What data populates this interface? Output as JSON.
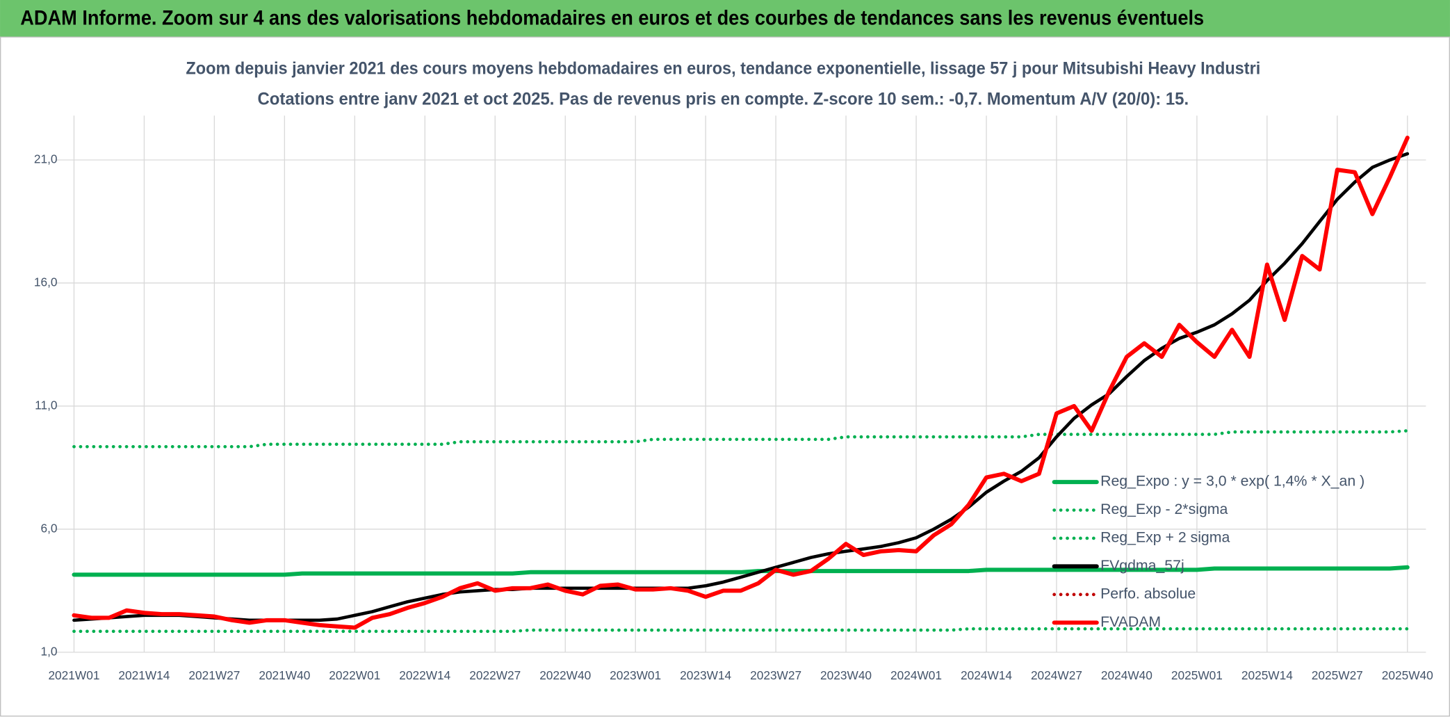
{
  "header": {
    "title": "ADAM Informe. Zoom sur 4 ans des valorisations hebdomadaires en euros et des courbes de tendances sans les revenus éventuels"
  },
  "chart_data": {
    "type": "line",
    "title": "Zoom depuis janvier 2021 des cours moyens hebdomadaires en euros, tendance exponentielle, lissage 57 j pour Mitsubishi Heavy Industri",
    "subtitle": "Cotations entre janv 2021 et oct 2025. Pas de revenus pris en compte. Z-score 10 sem.: -0,7. Momentum A/V (20/0): 15.",
    "categories": [
      "2021W01",
      null,
      null,
      null,
      "2021W14",
      null,
      null,
      null,
      "2021W27",
      null,
      null,
      null,
      "2021W40",
      null,
      null,
      null,
      "2022W01",
      null,
      null,
      null,
      "2022W14",
      null,
      null,
      null,
      "2022W27",
      null,
      null,
      null,
      "2022W40",
      null,
      null,
      null,
      "2023W01",
      null,
      null,
      null,
      "2023W14",
      null,
      null,
      null,
      "2023W27",
      null,
      null,
      null,
      "2023W40",
      null,
      null,
      null,
      "2024W01",
      null,
      null,
      null,
      "2024W14",
      null,
      null,
      null,
      "2024W27",
      null,
      null,
      null,
      "2024W40",
      null,
      null,
      null,
      "2025W01",
      null,
      null,
      null,
      "2025W14",
      null,
      null,
      null,
      "2025W27",
      null,
      null,
      null,
      "2025W40"
    ],
    "ylim": [
      1,
      22.8
    ],
    "yticks": [
      {
        "value": 1,
        "label": "1,0"
      },
      {
        "value": 6,
        "label": "6,0"
      },
      {
        "value": 11,
        "label": "11,0"
      },
      {
        "value": 16,
        "label": "16,0"
      },
      {
        "value": 21,
        "label": "21,0"
      }
    ],
    "grid": true,
    "legend": "lower right",
    "series": [
      {
        "name": "Reg_Expo : y = 3,0 * exp( 1,4% *  X_an )",
        "color": "#00b050",
        "style": "solid",
        "values": [
          4.15,
          4.15,
          4.15,
          4.15,
          4.15,
          4.15,
          4.15,
          4.15,
          4.15,
          4.15,
          4.15,
          4.15,
          4.15,
          4.2,
          4.2,
          4.2,
          4.2,
          4.2,
          4.2,
          4.2,
          4.2,
          4.2,
          4.2,
          4.2,
          4.2,
          4.2,
          4.25,
          4.25,
          4.25,
          4.25,
          4.25,
          4.25,
          4.25,
          4.25,
          4.25,
          4.25,
          4.25,
          4.25,
          4.25,
          4.3,
          4.3,
          4.3,
          4.3,
          4.3,
          4.3,
          4.3,
          4.3,
          4.3,
          4.3,
          4.3,
          4.3,
          4.3,
          4.35,
          4.35,
          4.35,
          4.35,
          4.35,
          4.35,
          4.35,
          4.35,
          4.35,
          4.35,
          4.35,
          4.35,
          4.35,
          4.4,
          4.4,
          4.4,
          4.4,
          4.4,
          4.4,
          4.4,
          4.4,
          4.4,
          4.4,
          4.4,
          4.45
        ]
      },
      {
        "name": "Reg_Exp - 2*sigma",
        "color": "#00b050",
        "style": "dotted",
        "values": [
          1.85,
          1.85,
          1.85,
          1.85,
          1.85,
          1.85,
          1.85,
          1.85,
          1.85,
          1.85,
          1.85,
          1.85,
          1.85,
          1.85,
          1.85,
          1.85,
          1.85,
          1.85,
          1.85,
          1.85,
          1.85,
          1.85,
          1.85,
          1.85,
          1.85,
          1.85,
          1.9,
          1.9,
          1.9,
          1.9,
          1.9,
          1.9,
          1.9,
          1.9,
          1.9,
          1.9,
          1.9,
          1.9,
          1.9,
          1.9,
          1.9,
          1.9,
          1.9,
          1.9,
          1.9,
          1.9,
          1.9,
          1.9,
          1.9,
          1.9,
          1.9,
          1.95,
          1.95,
          1.95,
          1.95,
          1.95,
          1.95,
          1.95,
          1.95,
          1.95,
          1.95,
          1.95,
          1.95,
          1.95,
          1.95,
          1.95,
          1.95,
          1.95,
          1.95,
          1.95,
          1.95,
          1.95,
          1.95,
          1.95,
          1.95,
          1.95,
          1.95
        ]
      },
      {
        "name": "Reg_Exp + 2 sigma",
        "color": "#00b050",
        "style": "dotted",
        "values": [
          9.35,
          9.35,
          9.35,
          9.35,
          9.35,
          9.35,
          9.35,
          9.35,
          9.35,
          9.35,
          9.35,
          9.45,
          9.45,
          9.45,
          9.45,
          9.45,
          9.45,
          9.45,
          9.45,
          9.45,
          9.45,
          9.45,
          9.55,
          9.55,
          9.55,
          9.55,
          9.55,
          9.55,
          9.55,
          9.55,
          9.55,
          9.55,
          9.55,
          9.65,
          9.65,
          9.65,
          9.65,
          9.65,
          9.65,
          9.65,
          9.65,
          9.65,
          9.65,
          9.65,
          9.75,
          9.75,
          9.75,
          9.75,
          9.75,
          9.75,
          9.75,
          9.75,
          9.75,
          9.75,
          9.75,
          9.85,
          9.85,
          9.85,
          9.85,
          9.85,
          9.85,
          9.85,
          9.85,
          9.85,
          9.85,
          9.85,
          9.95,
          9.95,
          9.95,
          9.95,
          9.95,
          9.95,
          9.95,
          9.95,
          9.95,
          9.95,
          10.0
        ]
      },
      {
        "name": "FVgdma_57j",
        "color": "#000000",
        "style": "solid",
        "values": [
          2.3,
          2.35,
          2.4,
          2.45,
          2.5,
          2.5,
          2.5,
          2.45,
          2.4,
          2.35,
          2.3,
          2.3,
          2.3,
          2.3,
          2.3,
          2.35,
          2.5,
          2.65,
          2.85,
          3.05,
          3.2,
          3.35,
          3.45,
          3.5,
          3.55,
          3.55,
          3.6,
          3.6,
          3.6,
          3.6,
          3.6,
          3.6,
          3.6,
          3.6,
          3.6,
          3.6,
          3.7,
          3.85,
          4.05,
          4.25,
          4.45,
          4.65,
          4.85,
          5.0,
          5.1,
          5.2,
          5.3,
          5.45,
          5.65,
          6.0,
          6.4,
          6.9,
          7.5,
          7.95,
          8.35,
          8.9,
          9.75,
          10.5,
          11.05,
          11.5,
          12.2,
          12.85,
          13.35,
          13.75,
          14.0,
          14.3,
          14.75,
          15.3,
          16.1,
          16.8,
          17.6,
          18.5,
          19.4,
          20.1,
          20.7,
          21.0,
          21.25
        ]
      },
      {
        "name": "Perfo. absolue",
        "color": "#c00000",
        "style": "dotted",
        "values": [
          null,
          null,
          null,
          null,
          null,
          null,
          null,
          null,
          null,
          null,
          null,
          null,
          null,
          null,
          null,
          null,
          null,
          null,
          null,
          null,
          null,
          null,
          null,
          null,
          null,
          null,
          null,
          null,
          null,
          null,
          null,
          null,
          null,
          null,
          null,
          null,
          null,
          null,
          null,
          null,
          null,
          null,
          null,
          null,
          null,
          null,
          null,
          null,
          null,
          null,
          null,
          null,
          null,
          null,
          null,
          null,
          null,
          null,
          null,
          null,
          null,
          null,
          null,
          null,
          null,
          null,
          null,
          null,
          null,
          null,
          null,
          null,
          null,
          null,
          null,
          null,
          null
        ]
      },
      {
        "name": "FVADAM",
        "color": "#ff0000",
        "style": "solid",
        "values": [
          2.5,
          2.4,
          2.4,
          2.7,
          2.6,
          2.55,
          2.55,
          2.5,
          2.45,
          2.3,
          2.2,
          2.3,
          2.3,
          2.2,
          2.1,
          2.05,
          2.0,
          2.4,
          2.55,
          2.8,
          3.0,
          3.25,
          3.6,
          3.8,
          3.5,
          3.6,
          3.6,
          3.75,
          3.5,
          3.35,
          3.7,
          3.75,
          3.55,
          3.55,
          3.6,
          3.5,
          3.25,
          3.5,
          3.5,
          3.8,
          4.35,
          4.15,
          4.3,
          4.8,
          5.4,
          4.95,
          5.1,
          5.15,
          5.1,
          5.75,
          6.2,
          7.0,
          8.1,
          8.25,
          7.95,
          8.25,
          10.7,
          11.0,
          10.0,
          11.6,
          13.0,
          13.55,
          13.0,
          14.3,
          13.6,
          13.0,
          14.1,
          13.0,
          16.75,
          14.5,
          17.1,
          16.55,
          20.6,
          20.5,
          18.8,
          20.3,
          21.9
        ]
      }
    ]
  }
}
